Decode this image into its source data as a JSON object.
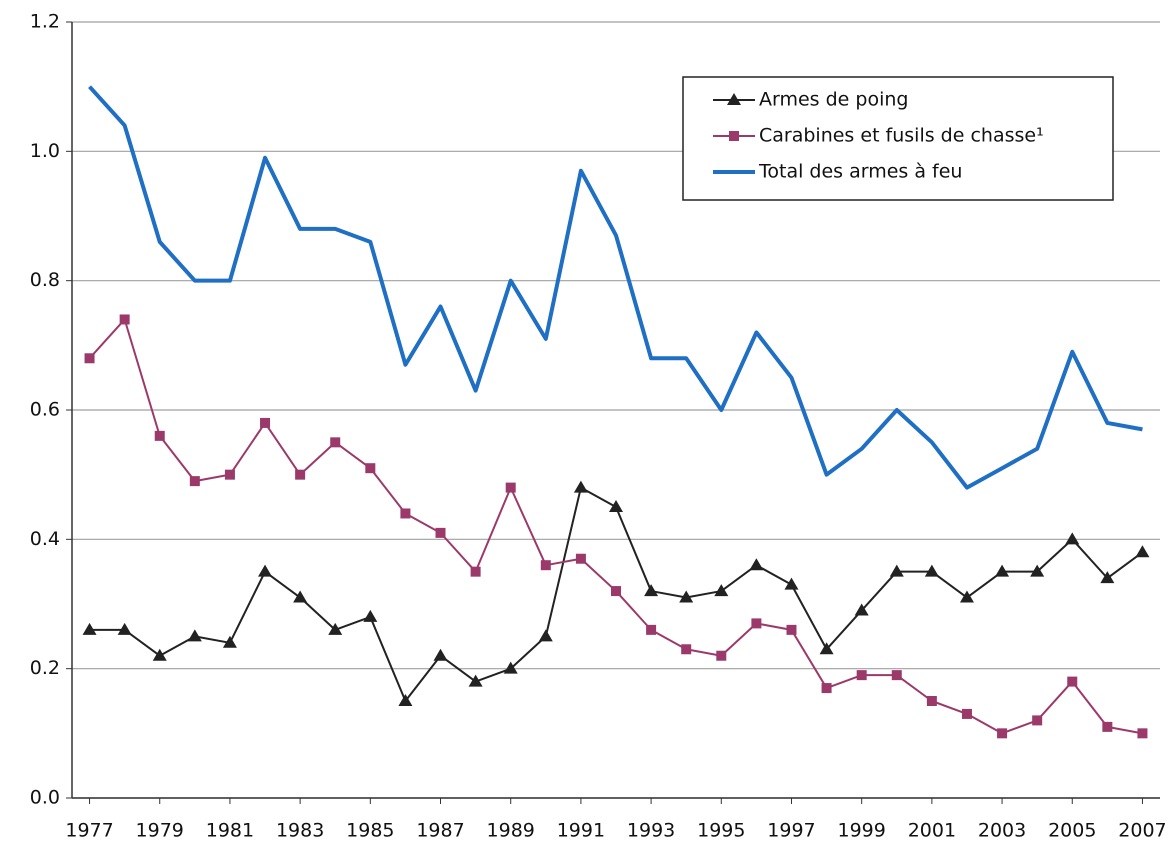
{
  "chart_data": {
    "type": "line",
    "x": [
      1977,
      1978,
      1979,
      1980,
      1981,
      1982,
      1983,
      1984,
      1985,
      1986,
      1987,
      1988,
      1989,
      1990,
      1991,
      1992,
      1993,
      1994,
      1995,
      1996,
      1997,
      1998,
      1999,
      2000,
      2001,
      2002,
      2003,
      2004,
      2005,
      2006,
      2007
    ],
    "xlim": [
      1976.5,
      2007.5
    ],
    "xticks": [
      1977,
      1979,
      1981,
      1983,
      1985,
      1987,
      1989,
      1991,
      1993,
      1995,
      1997,
      1999,
      2001,
      2003,
      2005,
      2007
    ],
    "ylim": [
      0,
      1.2
    ],
    "yticks": [
      {
        "value": 0,
        "label": "0.0"
      },
      0.2,
      0.4,
      0.6,
      0.8,
      {
        "value": 1,
        "label": "1.0"
      },
      1.2
    ],
    "grid": true,
    "legend": "upper right",
    "series": [
      {
        "name": "Armes de poing",
        "color": "#222222",
        "marker": "triangle",
        "values": [
          0.26,
          0.26,
          0.22,
          0.25,
          0.24,
          0.35,
          0.31,
          0.26,
          0.28,
          0.15,
          0.22,
          0.18,
          0.2,
          0.25,
          0.48,
          0.45,
          0.32,
          0.31,
          0.32,
          0.36,
          0.33,
          0.23,
          0.29,
          0.35,
          0.35,
          0.31,
          0.35,
          0.35,
          0.4,
          0.34,
          0.38
        ]
      },
      {
        "name": "Carabines et fusils de chasse¹",
        "color": "#9b3a6a",
        "marker": "square",
        "values": [
          0.68,
          0.74,
          0.56,
          0.49,
          0.5,
          0.58,
          0.5,
          0.55,
          0.51,
          0.44,
          0.41,
          0.35,
          0.48,
          0.36,
          0.37,
          0.32,
          0.26,
          0.23,
          0.22,
          0.27,
          0.26,
          0.17,
          0.19,
          0.19,
          0.15,
          0.13,
          0.1,
          0.12,
          0.18,
          0.11,
          0.1
        ]
      },
      {
        "name": "Total des armes à feu",
        "color": "#1f6fc5",
        "marker": "none",
        "values": [
          1.1,
          1.04,
          0.86,
          0.8,
          0.8,
          0.99,
          0.88,
          0.88,
          0.86,
          0.67,
          0.76,
          0.63,
          0.8,
          0.71,
          0.97,
          0.87,
          0.68,
          0.68,
          0.6,
          0.72,
          0.65,
          0.5,
          0.54,
          0.6,
          0.55,
          0.48,
          0.51,
          0.54,
          0.69,
          0.58,
          0.57
        ]
      }
    ]
  }
}
